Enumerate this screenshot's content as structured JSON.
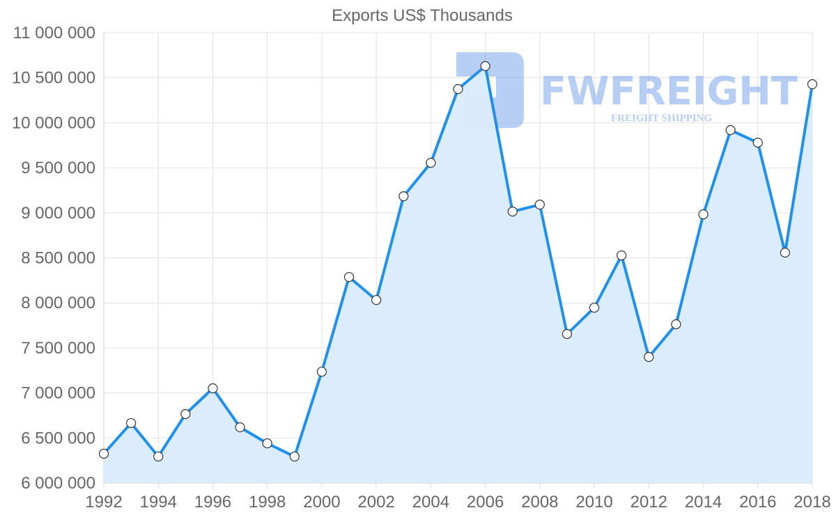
{
  "chart_data": {
    "type": "line",
    "title": "Exports US$ Thousands",
    "xlabel": "",
    "ylabel": "",
    "x": [
      1992,
      1993,
      1994,
      1995,
      1996,
      1997,
      1998,
      1999,
      2000,
      2001,
      2002,
      2003,
      2004,
      2005,
      2006,
      2007,
      2008,
      2009,
      2010,
      2011,
      2012,
      2013,
      2014,
      2015,
      2016,
      2017,
      2018
    ],
    "series": [
      {
        "name": "Exports US$ Thousands",
        "values": [
          6325000,
          6665000,
          6294000,
          6765000,
          7051000,
          6618000,
          6440000,
          6294000,
          7236000,
          8287000,
          8032000,
          9184000,
          9555000,
          10374000,
          10629000,
          9014000,
          9091000,
          7654000,
          7947000,
          8527000,
          7399000,
          7762000,
          8983000,
          9918000,
          9779000,
          8558000,
          10428000
        ],
        "color": "#1e90f0",
        "fill": "#d9ebfc"
      }
    ],
    "xlim": [
      1992,
      2018
    ],
    "ylim": [
      6000000,
      11000000
    ],
    "xticks": [
      "1992",
      "1994",
      "1996",
      "1998",
      "2000",
      "2002",
      "2004",
      "2006",
      "2008",
      "2010",
      "2012",
      "2014",
      "2016",
      "2018"
    ],
    "yticks": [
      "6 000 000",
      "6 500 000",
      "7 000 000",
      "7 500 000",
      "8 000 000",
      "8 500 000",
      "9 000 000",
      "9 500 000",
      "10 000 000",
      "10 500 000",
      "11 000 000"
    ],
    "grid": true,
    "legend": "none"
  },
  "watermark": {
    "brand": "FWFREIGHT",
    "tagline": "FREIGHT SHIPPING"
  }
}
